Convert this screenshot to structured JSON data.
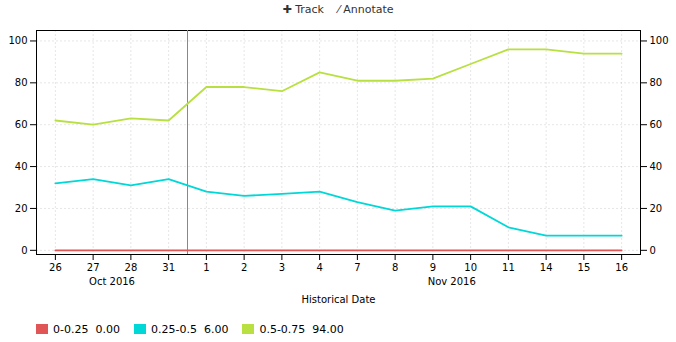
{
  "chart_data": {
    "type": "line",
    "xlabel": "Historical Date",
    "categories": [
      "26",
      "27",
      "28",
      "31",
      "1",
      "2",
      "3",
      "4",
      "7",
      "8",
      "9",
      "10",
      "11",
      "14",
      "15",
      "16"
    ],
    "series": [
      {
        "name": "0-0.25  0.00",
        "color": "#e05555",
        "values": [
          0,
          0,
          0,
          0,
          0,
          0,
          0,
          0,
          0,
          0,
          0,
          0,
          0,
          0,
          0,
          0
        ]
      },
      {
        "name": "0.25-0.5  6.00",
        "color": "#00d8d8",
        "values": [
          32,
          34,
          31,
          34,
          28,
          26,
          27,
          28,
          23,
          19,
          21,
          21,
          11,
          7,
          7,
          7
        ]
      },
      {
        "name": "0.5-0.75  94.00",
        "color": "#b8e040",
        "values": [
          62,
          60,
          63,
          62,
          78,
          78,
          76,
          85,
          81,
          81,
          82,
          89,
          96,
          96,
          94,
          94
        ]
      }
    ],
    "ylim": [
      -2,
      105
    ],
    "yticks": [
      0,
      20,
      40,
      60,
      80,
      100
    ],
    "grid": true,
    "legend": "lower left",
    "annotations": [
      {
        "text": "Oct 2016",
        "x": 1.5
      },
      {
        "text": "Nov 2016",
        "x": 10.5
      },
      {
        "text": "✚ Track    ⁄ Annotate"
      }
    ]
  }
}
